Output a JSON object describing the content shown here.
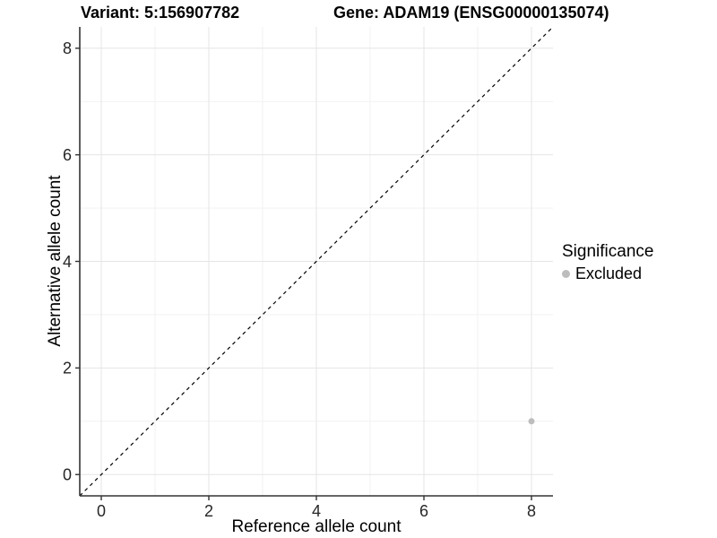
{
  "header": {
    "variant_title": "Variant: 5:156907782",
    "gene_title": "Gene: ADAM19 (ENSG00000135074)"
  },
  "legend": {
    "title": "Significance",
    "items": [
      {
        "label": "Excluded",
        "color": "#bdbdbd"
      }
    ]
  },
  "chart_data": {
    "type": "scatter",
    "title": "Variant: 5:156907782    Gene: ADAM19 (ENSG00000135074)",
    "xlabel": "Reference allele count",
    "ylabel": "Alternative allele count",
    "xlim": [
      -0.4,
      8.4
    ],
    "ylim": [
      -0.4,
      8.4
    ],
    "x_ticks": [
      0,
      2,
      4,
      6,
      8
    ],
    "y_ticks": [
      0,
      2,
      4,
      6,
      8
    ],
    "x_minor_ticks": [
      1,
      3,
      5,
      7
    ],
    "y_minor_ticks": [
      1,
      3,
      5,
      7
    ],
    "grid": true,
    "legend_position": "right",
    "identity_line": {
      "from": -0.4,
      "to": 8.4,
      "style": "dashed",
      "color": "#000000"
    },
    "series": [
      {
        "name": "Excluded",
        "color": "#bdbdbd",
        "points": [
          {
            "x": 8,
            "y": 1
          }
        ]
      }
    ],
    "colors": {
      "point": "#bdbdbd",
      "grid_major": "#e5e5e5",
      "grid_minor": "#f2f2f2",
      "axis": "#333333",
      "tick_label": "#262626"
    }
  }
}
